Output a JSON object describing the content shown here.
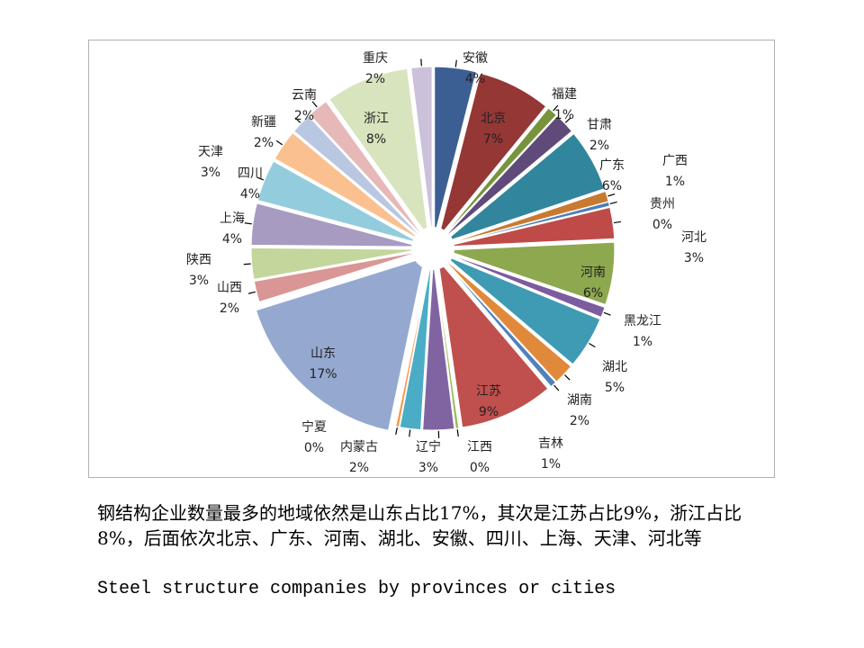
{
  "chart_data": {
    "type": "pie",
    "style": "exploded",
    "title": "",
    "slices": [
      {
        "name": "安徽",
        "label": "4%",
        "value": 4,
        "color": "#3C5F93",
        "inside": false
      },
      {
        "name": "北京",
        "label": "7%",
        "value": 7,
        "color": "#953735",
        "inside": true
      },
      {
        "name": "福建",
        "label": "1%",
        "value": 1,
        "color": "#77933C",
        "inside": false
      },
      {
        "name": "甘肃",
        "label": "2%",
        "value": 2,
        "color": "#5F4A7A",
        "inside": false
      },
      {
        "name": "广东",
        "label": "6%",
        "value": 6,
        "color": "#31859C",
        "inside": true
      },
      {
        "name": "广西",
        "label": "1%",
        "value": 1,
        "color": "#C87A30",
        "inside": false
      },
      {
        "name": "贵州",
        "label": "0%",
        "value": 0.4,
        "color": "#4A7EBB",
        "inside": false
      },
      {
        "name": "河北",
        "label": "3%",
        "value": 3,
        "color": "#BE4B48",
        "inside": false
      },
      {
        "name": "河南",
        "label": "6%",
        "value": 6,
        "color": "#8EA84F",
        "inside": true
      },
      {
        "name": "黑龙江",
        "label": "1%",
        "value": 1,
        "color": "#7B5C9E",
        "inside": false
      },
      {
        "name": "湖北",
        "label": "5%",
        "value": 5,
        "color": "#3E9BB3",
        "inside": false
      },
      {
        "name": "湖南",
        "label": "2%",
        "value": 2,
        "color": "#E0893A",
        "inside": false
      },
      {
        "name": "吉林",
        "label": "1%",
        "value": 0.6,
        "color": "#4F81BD",
        "inside": false
      },
      {
        "name": "江苏",
        "label": "9%",
        "value": 9,
        "color": "#C0504D",
        "inside": true
      },
      {
        "name": "江西",
        "label": "0%",
        "value": 0.3,
        "color": "#9BBB59",
        "inside": false
      },
      {
        "name": "辽宁",
        "label": "3%",
        "value": 3,
        "color": "#8064A2",
        "inside": false
      },
      {
        "name": "内蒙古",
        "label": "2%",
        "value": 2,
        "color": "#4BACC6",
        "inside": false
      },
      {
        "name": "宁夏",
        "label": "0%",
        "value": 0.3,
        "color": "#F79646",
        "inside": false
      },
      {
        "name": "山东",
        "label": "17%",
        "value": 17,
        "color": "#95A9D0",
        "inside": true
      },
      {
        "name": "山西",
        "label": "2%",
        "value": 2,
        "color": "#D99694",
        "inside": false
      },
      {
        "name": "陕西",
        "label": "3%",
        "value": 3,
        "color": "#C3D69B",
        "inside": false
      },
      {
        "name": "上海",
        "label": "4%",
        "value": 4,
        "color": "#A89BC2",
        "inside": false
      },
      {
        "name": "四川",
        "label": "4%",
        "value": 4,
        "color": "#93CDDD",
        "inside": false
      },
      {
        "name": "天津",
        "label": "3%",
        "value": 3,
        "color": "#FAC090",
        "inside": false
      },
      {
        "name": "新疆",
        "label": "2%",
        "value": 2,
        "color": "#B9C7E1",
        "inside": false
      },
      {
        "name": "云南",
        "label": "2%",
        "value": 2,
        "color": "#E6B9B8",
        "inside": false
      },
      {
        "name": "浙江",
        "label": "8%",
        "value": 8,
        "color": "#D7E4BD",
        "inside": true
      },
      {
        "name": "重庆",
        "label": "2%",
        "value": 2,
        "color": "#CCC1DA",
        "inside": false
      }
    ]
  },
  "caption": {
    "zh": "钢结构企业数量最多的地域依然是山东占比17%，其次是江苏占比9%，浙江占比8%，后面依次北京、广东、河南、湖北、安徽、四川、上海、天津、河北等",
    "en": "Steel structure companies by provinces or cities"
  }
}
